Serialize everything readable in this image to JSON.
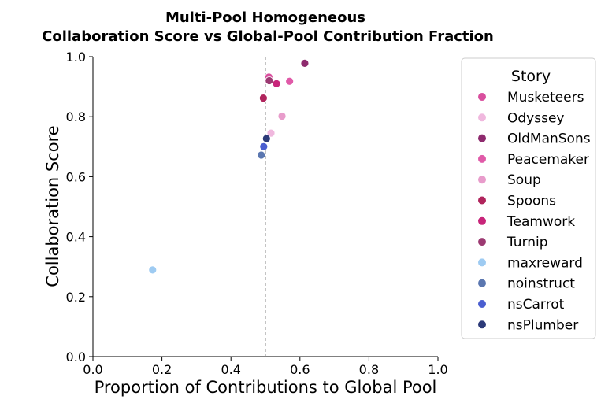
{
  "chart_data": {
    "type": "scatter",
    "title": [
      "Multi-Pool Homogeneous",
      "Collaboration Score vs Global-Pool Contribution Fraction"
    ],
    "xlabel": "Proportion of Contributions to Global Pool",
    "ylabel": "Collaboration Score",
    "xlim": [
      0.0,
      1.0
    ],
    "ylim": [
      0.0,
      1.0
    ],
    "xticks": [
      "0.0",
      "0.2",
      "0.4",
      "0.6",
      "0.8",
      "1.0"
    ],
    "yticks": [
      "0.0",
      "0.2",
      "0.4",
      "0.6",
      "0.8",
      "1.0"
    ],
    "reference_line": {
      "x": 0.5,
      "style": "dashed",
      "color": "#888888"
    },
    "grid": false,
    "legend": {
      "title": "Story",
      "placement": "outside-right"
    },
    "series": [
      {
        "name": "Musketeers",
        "color": "#d94f9e",
        "points": [
          [
            0.51,
            0.932
          ]
        ]
      },
      {
        "name": "Odyssey",
        "color": "#f0b8de",
        "points": [
          [
            0.516,
            0.745
          ]
        ]
      },
      {
        "name": "OldManSons",
        "color": "#8e2a6e",
        "points": [
          [
            0.614,
            0.978
          ]
        ]
      },
      {
        "name": "Peacemaker",
        "color": "#e05aa8",
        "points": [
          [
            0.57,
            0.918
          ]
        ]
      },
      {
        "name": "Soup",
        "color": "#e89ccb",
        "points": [
          [
            0.548,
            0.802
          ]
        ]
      },
      {
        "name": "Spoons",
        "color": "#b0245c",
        "points": [
          [
            0.494,
            0.862
          ]
        ]
      },
      {
        "name": "Teamwork",
        "color": "#c8257a",
        "points": [
          [
            0.532,
            0.91
          ]
        ]
      },
      {
        "name": "Turnip",
        "color": "#9c3a72",
        "points": [
          [
            0.511,
            0.92
          ]
        ]
      },
      {
        "name": "maxreward",
        "color": "#9ecbf2",
        "points": [
          [
            0.173,
            0.289
          ]
        ]
      },
      {
        "name": "noinstruct",
        "color": "#5b77b0",
        "points": [
          [
            0.488,
            0.672
          ]
        ]
      },
      {
        "name": "nsCarrot",
        "color": "#4a5ed0",
        "points": [
          [
            0.495,
            0.7
          ]
        ]
      },
      {
        "name": "nsPlumber",
        "color": "#2c3a78",
        "points": [
          [
            0.503,
            0.727
          ]
        ]
      }
    ]
  }
}
